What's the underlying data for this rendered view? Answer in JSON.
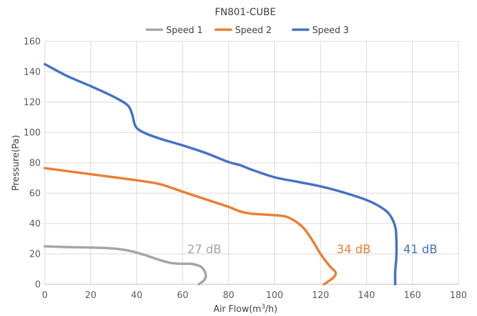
{
  "chart_data": {
    "type": "line",
    "title": "FN801-CUBE",
    "xlabel": "Air Flow(m",
    "xlabel_sup": "3",
    "xlabel_end": "/h)",
    "ylabel": "Pressure(Pa)",
    "xlim": [
      0,
      180
    ],
    "ylim": [
      0,
      160
    ],
    "xticks": [
      0,
      20,
      40,
      60,
      80,
      100,
      120,
      140,
      160,
      180
    ],
    "yticks": [
      0,
      20,
      40,
      60,
      80,
      100,
      120,
      140,
      160
    ],
    "grid": true,
    "legend_position": "top",
    "series": [
      {
        "name": "Speed 1",
        "color": "#A5A5A5",
        "annotation": "27 dB",
        "points": [
          [
            0,
            25
          ],
          [
            10,
            24.5
          ],
          [
            20,
            24.2
          ],
          [
            30,
            23.5
          ],
          [
            37,
            22
          ],
          [
            43,
            19.5
          ],
          [
            50,
            16
          ],
          [
            55,
            14
          ],
          [
            60,
            13.5
          ],
          [
            64,
            13.4
          ],
          [
            68,
            11.5
          ],
          [
            70,
            7
          ],
          [
            69.5,
            3
          ],
          [
            67,
            0
          ]
        ]
      },
      {
        "name": "Speed 2",
        "color": "#ED7D31",
        "annotation": "34 dB",
        "points": [
          [
            0,
            76.5
          ],
          [
            10,
            74.5
          ],
          [
            20,
            72.5
          ],
          [
            30,
            70.5
          ],
          [
            40,
            68.5
          ],
          [
            50,
            66
          ],
          [
            60,
            61
          ],
          [
            70,
            56
          ],
          [
            80,
            51
          ],
          [
            85,
            48
          ],
          [
            90,
            46.5
          ],
          [
            100,
            45.5
          ],
          [
            106,
            44
          ],
          [
            112,
            38
          ],
          [
            116,
            30
          ],
          [
            120,
            20
          ],
          [
            124,
            12
          ],
          [
            126.5,
            8
          ],
          [
            126,
            5
          ],
          [
            124,
            2.5
          ],
          [
            121.5,
            0
          ]
        ]
      },
      {
        "name": "Speed 3",
        "color": "#4472C4",
        "annotation": "41 dB",
        "points": [
          [
            0,
            145
          ],
          [
            10,
            137
          ],
          [
            20,
            130.5
          ],
          [
            30,
            123.5
          ],
          [
            36,
            118
          ],
          [
            38,
            112
          ],
          [
            39.5,
            104
          ],
          [
            43,
            100
          ],
          [
            50,
            96
          ],
          [
            60,
            91.5
          ],
          [
            70,
            86.5
          ],
          [
            80,
            80.5
          ],
          [
            85,
            78.5
          ],
          [
            90,
            75.5
          ],
          [
            100,
            70.5
          ],
          [
            110,
            67.5
          ],
          [
            120,
            64.5
          ],
          [
            130,
            60.5
          ],
          [
            140,
            55.5
          ],
          [
            146,
            51
          ],
          [
            150,
            46
          ],
          [
            152.5,
            38
          ],
          [
            153,
            30
          ],
          [
            153,
            18
          ],
          [
            152.5,
            8
          ],
          [
            152.5,
            0
          ]
        ]
      }
    ]
  }
}
